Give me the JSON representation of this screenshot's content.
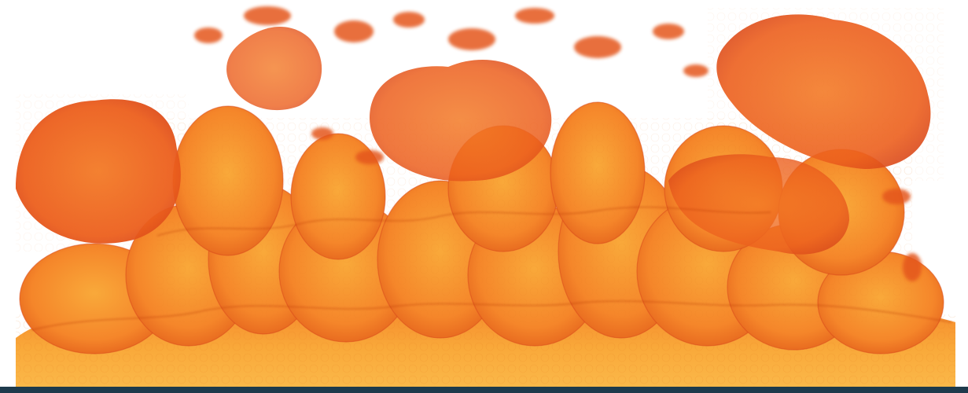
{
  "scene": {
    "subject": "volume-render-flame-plumes",
    "colors": {
      "background": "#ffffff",
      "bottom_bar": "#1e3a4c",
      "flame_light": "#f9a93a",
      "flame_mid": "#f5862a",
      "flame_deep": "#f06a1e",
      "flame_dark": "#d8461a",
      "flame_shadow": "#b8320f",
      "contour_line": "#e4791e"
    }
  }
}
